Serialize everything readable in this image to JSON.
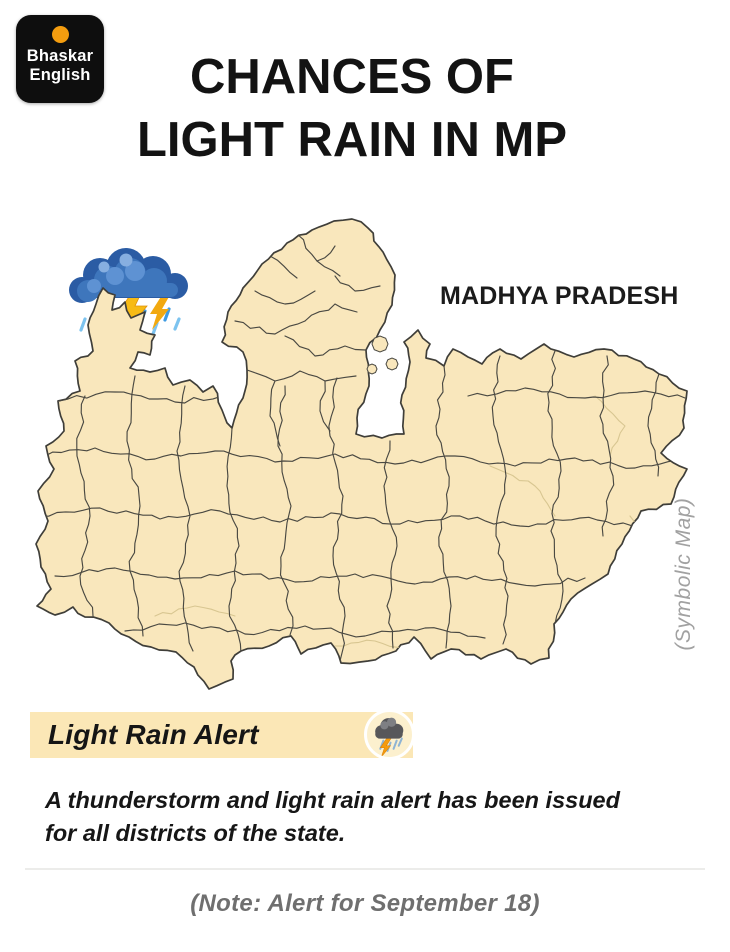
{
  "logo": {
    "line1": "Bhaskar",
    "line2": "English"
  },
  "header": {
    "title_line1": "CHANCES OF",
    "title_line2": "LIGHT RAIN IN MP"
  },
  "map": {
    "region_label": "MADHYA PRADESH",
    "watermark": "(Symbolic Map)",
    "fill_color": "#F9E7BC",
    "border_color": "#3F3E39",
    "inner_line_color": "#4A4942",
    "light_line_color": "#D8C691"
  },
  "alert": {
    "banner_label": "Light Rain Alert",
    "banner_bg": "#FBE7B6",
    "description_line1": "A thunderstorm and light rain alert has been issued",
    "description_line2": "for all districts of the state."
  },
  "footer": {
    "note": "(Note: Alert for September 18)"
  },
  "icons": {
    "storm_cloud": "blue storm cloud with lightning bolts and rain",
    "alert_badge": "grey storm cloud with lightning and rain in cream circle"
  },
  "colors": {
    "logo_bg": "#0E0E0E",
    "logo_dot": "#F49D0F",
    "title_text": "#131313",
    "note_text": "#6F6F6F",
    "watermark_text": "#A1A1A1"
  }
}
